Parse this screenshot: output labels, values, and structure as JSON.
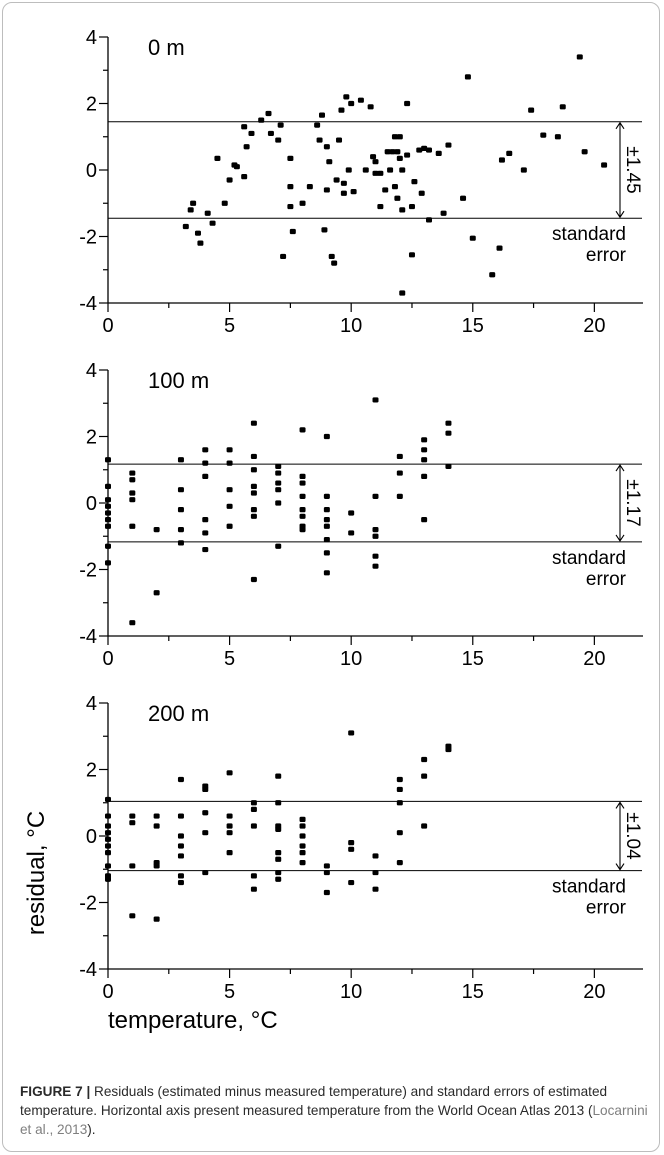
{
  "chart_data": [
    {
      "type": "scatter",
      "panel_label": "0 m",
      "xlim": [
        0,
        22
      ],
      "ylim": [
        -4,
        4
      ],
      "x_ticks": [
        0,
        5,
        10,
        15,
        20
      ],
      "y_ticks": [
        -4,
        -2,
        0,
        2,
        4
      ],
      "standard_error": 1.45,
      "bracket_label": "±1.45",
      "se_label_line1": "standard",
      "se_label_line2": "error",
      "points": [
        [
          3.2,
          -1.7
        ],
        [
          3.4,
          -1.2
        ],
        [
          3.5,
          -1.0
        ],
        [
          3.7,
          -1.9
        ],
        [
          3.8,
          -2.2
        ],
        [
          4.1,
          -1.3
        ],
        [
          4.3,
          -1.6
        ],
        [
          4.5,
          0.35
        ],
        [
          4.8,
          -1.0
        ],
        [
          5.0,
          -0.3
        ],
        [
          5.2,
          0.15
        ],
        [
          5.3,
          0.1
        ],
        [
          5.6,
          -0.2
        ],
        [
          5.6,
          1.3
        ],
        [
          5.7,
          0.7
        ],
        [
          5.9,
          1.1
        ],
        [
          6.3,
          1.5
        ],
        [
          6.6,
          1.7
        ],
        [
          6.7,
          1.1
        ],
        [
          7.0,
          0.9
        ],
        [
          7.1,
          1.35
        ],
        [
          7.2,
          -2.6
        ],
        [
          7.5,
          0.35
        ],
        [
          7.5,
          -0.5
        ],
        [
          7.5,
          -1.1
        ],
        [
          7.6,
          -1.85
        ],
        [
          8.0,
          -1.0
        ],
        [
          8.3,
          -0.5
        ],
        [
          8.6,
          1.35
        ],
        [
          8.7,
          0.9
        ],
        [
          8.8,
          1.65
        ],
        [
          8.9,
          -1.8
        ],
        [
          9.0,
          -0.6
        ],
        [
          9.0,
          0.7
        ],
        [
          9.1,
          0.25
        ],
        [
          9.2,
          -2.6
        ],
        [
          9.3,
          -2.8
        ],
        [
          9.4,
          -0.3
        ],
        [
          9.5,
          0.9
        ],
        [
          9.6,
          1.8
        ],
        [
          9.7,
          -0.7
        ],
        [
          9.7,
          -0.4
        ],
        [
          9.8,
          2.2
        ],
        [
          9.9,
          0.0
        ],
        [
          10.0,
          2.0
        ],
        [
          10.1,
          -0.65
        ],
        [
          10.4,
          2.1
        ],
        [
          10.6,
          0.0
        ],
        [
          10.8,
          1.9
        ],
        [
          10.9,
          0.4
        ],
        [
          11.0,
          -0.1
        ],
        [
          11.0,
          0.25
        ],
        [
          11.2,
          -1.1
        ],
        [
          11.2,
          -0.1
        ],
        [
          11.4,
          -0.6
        ],
        [
          11.5,
          0.55
        ],
        [
          11.6,
          0.0
        ],
        [
          11.7,
          0.55
        ],
        [
          11.8,
          1.0
        ],
        [
          11.8,
          -0.5
        ],
        [
          11.9,
          -0.85
        ],
        [
          11.9,
          0.55
        ],
        [
          12.0,
          1.0
        ],
        [
          12.0,
          0.35
        ],
        [
          12.1,
          0.0
        ],
        [
          12.1,
          -1.2
        ],
        [
          12.1,
          -3.7
        ],
        [
          12.3,
          0.45
        ],
        [
          12.3,
          2.0
        ],
        [
          12.5,
          -1.1
        ],
        [
          12.5,
          -2.55
        ],
        [
          12.6,
          -0.35
        ],
        [
          12.8,
          0.6
        ],
        [
          12.9,
          -0.7
        ],
        [
          13.0,
          0.65
        ],
        [
          13.2,
          -1.5
        ],
        [
          13.2,
          0.6
        ],
        [
          13.6,
          0.5
        ],
        [
          13.8,
          -1.3
        ],
        [
          14.0,
          0.75
        ],
        [
          14.6,
          -0.85
        ],
        [
          14.8,
          2.8
        ],
        [
          15.0,
          -2.05
        ],
        [
          15.8,
          -3.15
        ],
        [
          16.1,
          -2.35
        ],
        [
          16.2,
          0.3
        ],
        [
          16.5,
          0.5
        ],
        [
          17.1,
          0.0
        ],
        [
          17.4,
          1.8
        ],
        [
          17.9,
          1.05
        ],
        [
          18.5,
          1.0
        ],
        [
          18.7,
          1.9
        ],
        [
          19.4,
          3.4
        ],
        [
          19.6,
          0.55
        ],
        [
          20.4,
          0.15
        ]
      ]
    },
    {
      "type": "scatter",
      "panel_label": "100 m",
      "xlim": [
        0,
        22
      ],
      "ylim": [
        -4,
        4
      ],
      "x_ticks": [
        0,
        5,
        10,
        15,
        20
      ],
      "y_ticks": [
        -4,
        -2,
        0,
        2,
        4
      ],
      "standard_error": 1.17,
      "bracket_label": "±1.17",
      "se_label_line1": "standard",
      "se_label_line2": "error",
      "points": [
        [
          0,
          1.3
        ],
        [
          0,
          0.5
        ],
        [
          0,
          0.1
        ],
        [
          0,
          -0.1
        ],
        [
          0,
          -0.3
        ],
        [
          0,
          -0.5
        ],
        [
          0,
          -0.7
        ],
        [
          0,
          -1.3
        ],
        [
          0,
          -1.8
        ],
        [
          1,
          0.9
        ],
        [
          1,
          0.7
        ],
        [
          1,
          0.3
        ],
        [
          1,
          0.1
        ],
        [
          1,
          -0.7
        ],
        [
          1,
          -3.6
        ],
        [
          2,
          -0.8
        ],
        [
          2,
          -2.7
        ],
        [
          3,
          1.3
        ],
        [
          3,
          0.4
        ],
        [
          3,
          -0.2
        ],
        [
          3,
          -0.8
        ],
        [
          3,
          -1.2
        ],
        [
          4,
          1.6
        ],
        [
          4,
          1.2
        ],
        [
          4,
          0.8
        ],
        [
          4,
          -0.5
        ],
        [
          4,
          -0.9
        ],
        [
          4,
          -1.4
        ],
        [
          5,
          1.6
        ],
        [
          5,
          1.2
        ],
        [
          5,
          0.4
        ],
        [
          5,
          -0.1
        ],
        [
          5,
          -0.7
        ],
        [
          6,
          2.4
        ],
        [
          6,
          1.4
        ],
        [
          6,
          1.0
        ],
        [
          6,
          0.5
        ],
        [
          6,
          0.3
        ],
        [
          6,
          -0.2
        ],
        [
          6,
          -0.4
        ],
        [
          6,
          -2.3
        ],
        [
          7,
          1.1
        ],
        [
          7,
          0.9
        ],
        [
          7,
          0.6
        ],
        [
          7,
          0.4
        ],
        [
          7,
          0.0
        ],
        [
          7,
          -1.3
        ],
        [
          8,
          2.2
        ],
        [
          8,
          0.8
        ],
        [
          8,
          0.6
        ],
        [
          8,
          0.2
        ],
        [
          8,
          -0.2
        ],
        [
          8,
          -0.4
        ],
        [
          8,
          -0.7
        ],
        [
          8,
          -0.8
        ],
        [
          9,
          2.0
        ],
        [
          9,
          0.2
        ],
        [
          9,
          -0.2
        ],
        [
          9,
          -0.5
        ],
        [
          9,
          -0.7
        ],
        [
          9,
          -1.1
        ],
        [
          9,
          -1.5
        ],
        [
          9,
          -2.1
        ],
        [
          10,
          -0.3
        ],
        [
          10,
          -0.9
        ],
        [
          11,
          3.1
        ],
        [
          11,
          0.2
        ],
        [
          11,
          -0.8
        ],
        [
          11,
          -1.0
        ],
        [
          11,
          -1.6
        ],
        [
          11,
          -1.9
        ],
        [
          12,
          1.4
        ],
        [
          12,
          0.9
        ],
        [
          12,
          0.2
        ],
        [
          13,
          1.9
        ],
        [
          13,
          1.6
        ],
        [
          13,
          1.3
        ],
        [
          13,
          0.8
        ],
        [
          13,
          -0.5
        ],
        [
          14,
          2.4
        ],
        [
          14,
          2.1
        ],
        [
          14,
          1.1
        ]
      ]
    },
    {
      "type": "scatter",
      "panel_label": "200 m",
      "xlim": [
        0,
        22
      ],
      "ylim": [
        -4,
        4
      ],
      "x_ticks": [
        0,
        5,
        10,
        15,
        20
      ],
      "y_ticks": [
        -4,
        -2,
        0,
        2,
        4
      ],
      "standard_error": 1.04,
      "bracket_label": "±1.04",
      "se_label_line1": "standard",
      "se_label_line2": "error",
      "xlabel": "temperature, °C",
      "ylabel": "residual, °C",
      "points": [
        [
          0,
          1.1
        ],
        [
          0,
          0.6
        ],
        [
          0,
          0.3
        ],
        [
          0,
          0.1
        ],
        [
          0,
          -0.1
        ],
        [
          0,
          -0.3
        ],
        [
          0,
          -0.5
        ],
        [
          0,
          -0.9
        ],
        [
          0,
          -1.2
        ],
        [
          0,
          -1.3
        ],
        [
          1,
          0.6
        ],
        [
          1,
          0.4
        ],
        [
          1,
          -0.9
        ],
        [
          1,
          -2.4
        ],
        [
          2,
          0.6
        ],
        [
          2,
          0.3
        ],
        [
          2,
          -0.8
        ],
        [
          2,
          -0.9
        ],
        [
          2,
          -2.5
        ],
        [
          3,
          1.7
        ],
        [
          3,
          0.6
        ],
        [
          3,
          0.0
        ],
        [
          3,
          -0.3
        ],
        [
          3,
          -0.6
        ],
        [
          3,
          -1.2
        ],
        [
          3,
          -1.4
        ],
        [
          4,
          1.5
        ],
        [
          4,
          1.4
        ],
        [
          4,
          0.7
        ],
        [
          4,
          0.1
        ],
        [
          4,
          -1.1
        ],
        [
          5,
          1.9
        ],
        [
          5,
          0.6
        ],
        [
          5,
          0.3
        ],
        [
          5,
          0.1
        ],
        [
          5,
          -0.5
        ],
        [
          6,
          1.0
        ],
        [
          6,
          0.8
        ],
        [
          6,
          0.3
        ],
        [
          6,
          -1.2
        ],
        [
          6,
          -1.6
        ],
        [
          7,
          1.8
        ],
        [
          7,
          1.0
        ],
        [
          7,
          0.3
        ],
        [
          7,
          0.2
        ],
        [
          7,
          -0.5
        ],
        [
          7,
          -0.7
        ],
        [
          7,
          -1.1
        ],
        [
          7,
          -1.3
        ],
        [
          8,
          0.5
        ],
        [
          8,
          0.3
        ],
        [
          8,
          0.0
        ],
        [
          8,
          -0.3
        ],
        [
          8,
          -0.5
        ],
        [
          8,
          -0.8
        ],
        [
          9,
          -0.9
        ],
        [
          9,
          -1.1
        ],
        [
          9,
          -1.7
        ],
        [
          10,
          3.1
        ],
        [
          10,
          -0.2
        ],
        [
          10,
          -0.4
        ],
        [
          10,
          -1.4
        ],
        [
          11,
          -0.6
        ],
        [
          11,
          -1.1
        ],
        [
          11,
          -1.6
        ],
        [
          12,
          1.7
        ],
        [
          12,
          1.4
        ],
        [
          12,
          1.0
        ],
        [
          12,
          0.1
        ],
        [
          12,
          -0.8
        ],
        [
          13,
          2.3
        ],
        [
          13,
          1.8
        ],
        [
          13,
          0.3
        ],
        [
          14,
          2.7
        ],
        [
          14,
          2.6
        ]
      ]
    }
  ],
  "caption": {
    "figure_label": "FIGURE 7 |",
    "text_before_ref": " Residuals (estimated minus measured temperature) and standard errors of estimated temperature. Horizontal axis present measured temperature from the World Ocean Atlas 2013 (",
    "ref_text": "Locarnini et al., 2013",
    "text_after_ref": ")."
  }
}
